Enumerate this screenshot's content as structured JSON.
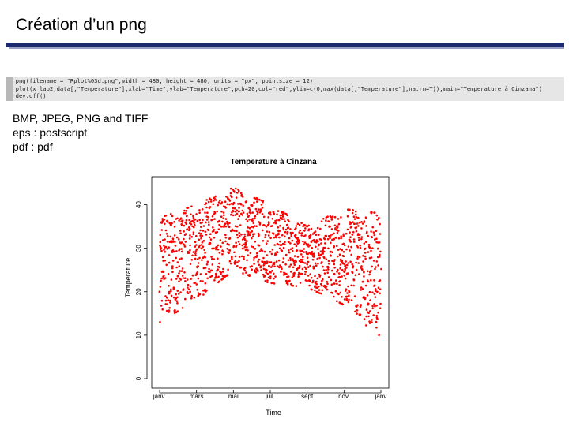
{
  "slide": {
    "title": "Création d’un png",
    "code_lines": [
      "> png(filename = \"Rplot%03d.png\",width = 480, height = 480, units = \"px\", pointsize = 12)",
      "> plot(x_lab2,data[,\"Temperature\"],xlab=\"Time\",ylab=\"Temperature\",pch=20,col=\"red\",ylim=c(0,max(data[,\"Temperature\"],na.rm=T)),main=\"Temperature à Cinzana\")",
      "> dev.off()"
    ],
    "formats": [
      "BMP, JPEG, PNG and TIFF",
      "eps : postscript",
      "pdf : pdf"
    ]
  },
  "chart_data": {
    "type": "scatter",
    "title": "Temperature à Cinzana",
    "xlabel": "Time",
    "ylabel": "Temperature",
    "x_ticks": [
      "janv.",
      "mars",
      "mai",
      "juil.",
      "sept",
      "nov.",
      "janv"
    ],
    "y_ticks": [
      0,
      10,
      20,
      30,
      40
    ],
    "ylim": [
      0,
      45
    ],
    "color": "#ff0000",
    "upper_envelope": [
      {
        "x": "janv.",
        "y": 37
      },
      {
        "x": "mars",
        "y": 40
      },
      {
        "x": "mai",
        "y": 44
      },
      {
        "x": "juil.",
        "y": 40
      },
      {
        "x": "sept",
        "y": 35
      },
      {
        "x": "nov.",
        "y": 39
      },
      {
        "x": "janv",
        "y": 38
      }
    ],
    "lower_envelope": [
      {
        "x": "janv.",
        "y": 13
      },
      {
        "x": "mars",
        "y": 18
      },
      {
        "x": "mai",
        "y": 25
      },
      {
        "x": "juil.",
        "y": 22
      },
      {
        "x": "sept",
        "y": 21
      },
      {
        "x": "nov.",
        "y": 17
      },
      {
        "x": "janv",
        "y": 9
      }
    ]
  }
}
